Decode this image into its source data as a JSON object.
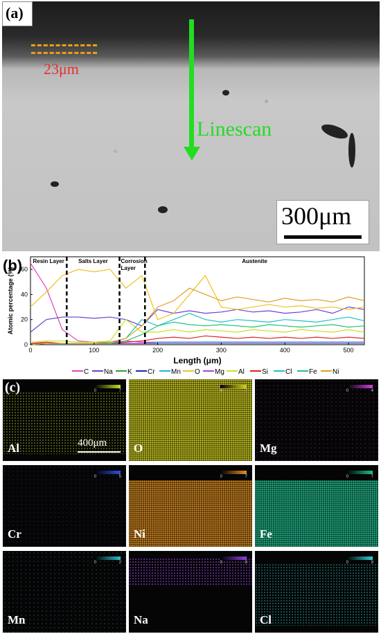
{
  "panel_a": {
    "label": "(a)",
    "thickness_label": "23μm",
    "arrow_label": "Linescan",
    "scale_bar": "300μm"
  },
  "panel_b": {
    "label": "(b)"
  },
  "chart_data": {
    "type": "line",
    "xlabel": "Length (μm)",
    "ylabel": "Atomic percentage (%)",
    "xlim": [
      0,
      525
    ],
    "ylim": [
      0,
      70
    ],
    "xticks": [
      0,
      100,
      200,
      300,
      400,
      500
    ],
    "yticks": [
      0,
      20,
      40,
      60
    ],
    "regions": [
      {
        "label": "Resin Layer",
        "from": 0,
        "to": 57
      },
      {
        "label": "Salts Layer",
        "from": 57,
        "to": 140
      },
      {
        "label": "Corrosion Layer",
        "from": 140,
        "to": 180
      },
      {
        "label": "Austenite",
        "from": 180,
        "to": 525
      }
    ],
    "legend_position": "bottom",
    "x": [
      0,
      25,
      50,
      75,
      100,
      125,
      150,
      175,
      200,
      225,
      250,
      275,
      300,
      325,
      350,
      375,
      400,
      425,
      450,
      475,
      500,
      525
    ],
    "series": [
      {
        "name": "C",
        "color": "#e040c0",
        "values": [
          65,
          45,
          12,
          3,
          2,
          2,
          3,
          2,
          2,
          2,
          2,
          2,
          2,
          2,
          2,
          2,
          2,
          2,
          2,
          2,
          2,
          2
        ]
      },
      {
        "name": "Na",
        "color": "#6a3fd0",
        "values": [
          10,
          20,
          22,
          22,
          21,
          22,
          20,
          15,
          28,
          25,
          27,
          25,
          26,
          28,
          26,
          27,
          25,
          26,
          28,
          25,
          30,
          28
        ]
      },
      {
        "name": "K",
        "color": "#2e9e2e",
        "values": [
          1,
          1,
          1,
          1,
          1,
          1,
          1,
          1,
          1,
          1,
          1,
          1,
          1,
          1,
          1,
          1,
          1,
          1,
          1,
          1,
          1,
          1
        ]
      },
      {
        "name": "Cr",
        "color": "#2020c0",
        "values": [
          0,
          1,
          1,
          1,
          1,
          1,
          1,
          1,
          2,
          2,
          2,
          2,
          2,
          2,
          2,
          2,
          2,
          2,
          2,
          2,
          2,
          2
        ]
      },
      {
        "name": "Mn",
        "color": "#20b0e0",
        "values": [
          0,
          1,
          1,
          1,
          1,
          1,
          1,
          1,
          2,
          2,
          2,
          2,
          2,
          2,
          2,
          2,
          2,
          2,
          2,
          2,
          2,
          2
        ]
      },
      {
        "name": "O",
        "color": "#f0c020",
        "values": [
          30,
          42,
          55,
          60,
          58,
          60,
          45,
          55,
          20,
          25,
          40,
          55,
          30,
          28,
          30,
          32,
          30,
          31,
          29,
          30,
          28,
          30
        ]
      },
      {
        "name": "Mg",
        "color": "#b040d0",
        "values": [
          1,
          1,
          1,
          1,
          1,
          1,
          1,
          1,
          1,
          1,
          1,
          1,
          1,
          1,
          1,
          1,
          1,
          1,
          1,
          1,
          1,
          1
        ]
      },
      {
        "name": "Al",
        "color": "#c8e020",
        "values": [
          2,
          3,
          3,
          2,
          2,
          3,
          20,
          10,
          10,
          12,
          10,
          12,
          11,
          10,
          12,
          11,
          10,
          12,
          11,
          10,
          12,
          10
        ]
      },
      {
        "name": "Si",
        "color": "#e02020",
        "values": [
          1,
          2,
          1,
          1,
          1,
          1,
          2,
          3,
          5,
          6,
          5,
          7,
          6,
          5,
          6,
          5,
          6,
          5,
          6,
          5,
          6,
          5
        ]
      },
      {
        "name": "Cl",
        "color": "#20c0c0",
        "values": [
          0,
          1,
          1,
          1,
          1,
          2,
          5,
          20,
          15,
          20,
          25,
          20,
          18,
          20,
          19,
          18,
          20,
          19,
          18,
          20,
          22,
          19
        ]
      },
      {
        "name": "Fe",
        "color": "#20c080",
        "values": [
          0,
          1,
          1,
          1,
          1,
          1,
          3,
          8,
          15,
          18,
          16,
          15,
          16,
          15,
          14,
          16,
          15,
          14,
          15,
          16,
          14,
          15
        ]
      },
      {
        "name": "Ni",
        "color": "#e0a020",
        "values": [
          0,
          1,
          1,
          1,
          1,
          2,
          5,
          15,
          30,
          35,
          45,
          40,
          35,
          38,
          36,
          34,
          37,
          35,
          36,
          34,
          38,
          35
        ]
      }
    ]
  },
  "panel_c": {
    "label": "(c)",
    "scale_bar": "400μm",
    "maps": [
      {
        "element": "Al",
        "min": "0",
        "max": "7",
        "color": "#c8e020"
      },
      {
        "element": "O",
        "min": "0",
        "max": "7",
        "color": "#d8d820"
      },
      {
        "element": "Mg",
        "min": "0",
        "max": "4",
        "color": "#d040e0"
      },
      {
        "element": "Cr",
        "min": "0",
        "max": "5",
        "color": "#3050e0"
      },
      {
        "element": "Ni",
        "min": "0",
        "max": "7",
        "color": "#e09020"
      },
      {
        "element": "Fe",
        "min": "0",
        "max": "7",
        "color": "#20c090"
      },
      {
        "element": "Mn",
        "min": "0",
        "max": "2",
        "color": "#30c0d0"
      },
      {
        "element": "Na",
        "min": "0",
        "max": "9",
        "color": "#9040e0"
      },
      {
        "element": "Cl",
        "min": "0",
        "max": "9",
        "color": "#30d0d0"
      }
    ]
  }
}
